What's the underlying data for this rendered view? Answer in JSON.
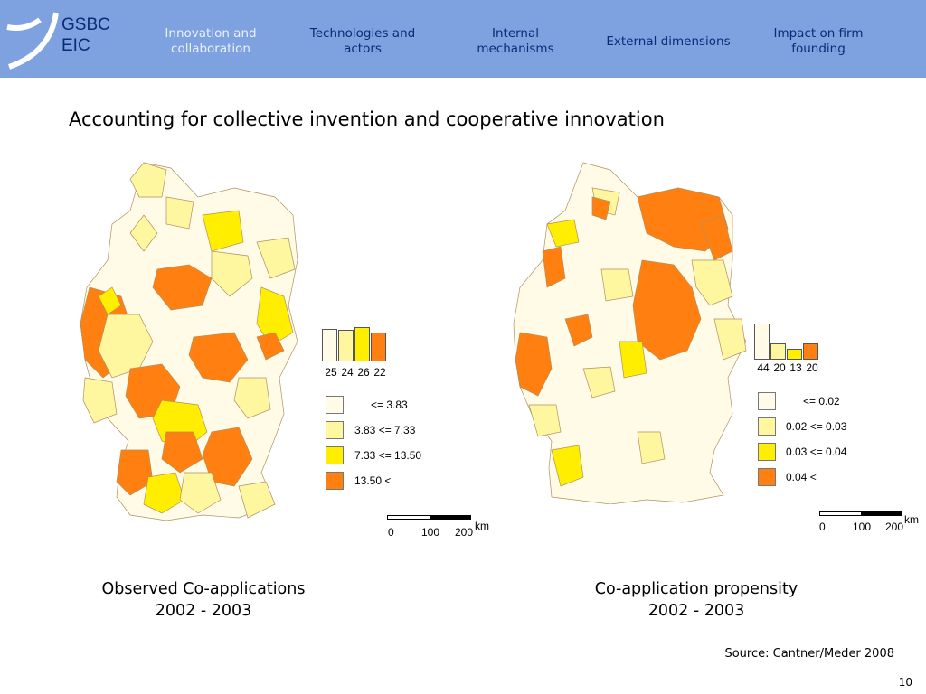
{
  "colors": {
    "class1": "#fffbe6",
    "class2": "#fff6a0",
    "class3": "#ffee00",
    "class4": "#ff8010",
    "header_bg": "#7da2df",
    "nav_text": "#0d2a7a"
  },
  "logo": {
    "line1": "GSBC",
    "line2": "EIC"
  },
  "nav": [
    {
      "label": "Innovation and collaboration",
      "active": true
    },
    {
      "label": "Technologies and actors",
      "active": false
    },
    {
      "label": "Internal mechanisms",
      "active": false
    },
    {
      "label": "External dimensions",
      "active": false
    },
    {
      "label": "Impact on firm founding",
      "active": false
    }
  ],
  "title": "Accounting for collective invention and cooperative innovation",
  "maps": [
    {
      "counts": [
        "25",
        "24",
        "26",
        "22"
      ],
      "legend": [
        "<= 3.83",
        "3.83 <= 7.33",
        "7.33 <= 13.50",
        "13.50 <"
      ],
      "scale": {
        "zero": "0",
        "mid": "100",
        "max": "200",
        "unit": "km"
      },
      "caption_line1": "Observed Co-applications",
      "caption_line2": "2002 - 2003"
    },
    {
      "counts": [
        "44",
        "20",
        "13",
        "20"
      ],
      "legend": [
        "<= 0.02",
        "0.02 <= 0.03",
        "0.03 <= 0.04",
        "0.04 <"
      ],
      "scale": {
        "zero": "0",
        "mid": "100",
        "max": "200",
        "unit": "km"
      },
      "caption_line1": "Co-application propensity",
      "caption_line2": "2002 - 2003"
    }
  ],
  "source": "Source: Cantner/Meder 2008",
  "page_number": "10"
}
